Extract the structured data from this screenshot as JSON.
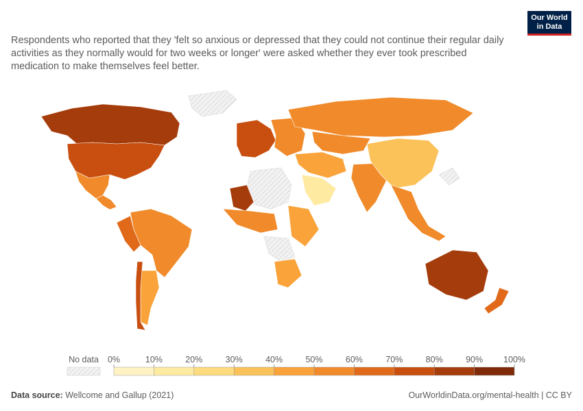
{
  "subtitle": "Respondents who reported that they 'felt so anxious or depressed that they could not continue their regular daily activities as they normally would for two weeks or longer' were asked whether they ever took prescribed medication to make themselves feel better.",
  "logo": {
    "line1": "Our World",
    "line2": "in Data"
  },
  "legend": {
    "no_data_label": "No data",
    "ticks": [
      "0%",
      "10%",
      "20%",
      "30%",
      "40%",
      "50%",
      "60%",
      "70%",
      "80%",
      "90%",
      "100%"
    ],
    "colors": [
      "#fff3c4",
      "#feeaa1",
      "#fddb7e",
      "#fbc25a",
      "#f9a33a",
      "#f08a2a",
      "#e06a1a",
      "#c84f10",
      "#a53c0b",
      "#7f2a08"
    ]
  },
  "footer": {
    "source_label": "Data source:",
    "source_value": "Wellcome and Gallup (2021)",
    "url": "OurWorldinData.org/mental-health | CC BY"
  },
  "map_data": {
    "type": "choropleth",
    "unit": "%",
    "no_data_color": "#e8e8e8",
    "regions": [
      {
        "name": "Canada",
        "value": 82
      },
      {
        "name": "United States",
        "value": 70
      },
      {
        "name": "Mexico",
        "value": 52
      },
      {
        "name": "Central America",
        "value": 55
      },
      {
        "name": "Brazil",
        "value": 50
      },
      {
        "name": "Peru",
        "value": 62
      },
      {
        "name": "Argentina",
        "value": 48
      },
      {
        "name": "Chile",
        "value": 72
      },
      {
        "name": "Western Europe",
        "value": 75
      },
      {
        "name": "Eastern Europe",
        "value": 55
      },
      {
        "name": "Russia",
        "value": 52
      },
      {
        "name": "Kazakhstan",
        "value": 55
      },
      {
        "name": "Middle East",
        "value": 45
      },
      {
        "name": "Saudi Arabia",
        "value": 18
      },
      {
        "name": "Mali",
        "value": 80
      },
      {
        "name": "West Africa",
        "value": 50
      },
      {
        "name": "East Africa",
        "value": 42
      },
      {
        "name": "South Africa",
        "value": 48
      },
      {
        "name": "India",
        "value": 55
      },
      {
        "name": "China",
        "value": 32
      },
      {
        "name": "Southeast Asia",
        "value": 55
      },
      {
        "name": "Australia",
        "value": 80
      },
      {
        "name": "New Zealand",
        "value": 65
      }
    ]
  }
}
